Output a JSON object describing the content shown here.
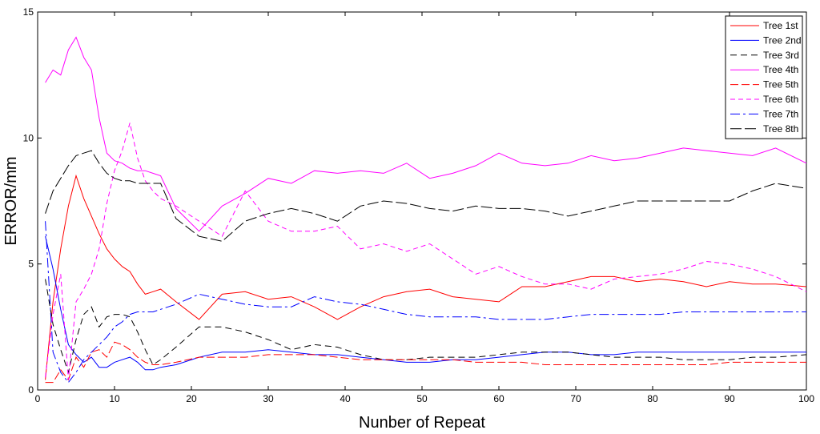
{
  "chart_data": {
    "type": "line",
    "title": "",
    "xlabel": "Nunber of Repeat",
    "ylabel": "ERROR/mm",
    "xlim": [
      0,
      100
    ],
    "ylim": [
      0,
      15
    ],
    "xticks": [
      0,
      10,
      20,
      30,
      40,
      50,
      60,
      70,
      80,
      90,
      100
    ],
    "yticks": [
      0,
      5,
      10,
      15
    ],
    "grid": false,
    "legend": {
      "position": "top-right"
    },
    "series": [
      {
        "name": "Tree 1st",
        "color": "#ff0000",
        "dash": "solid",
        "x": [
          1,
          2,
          3,
          4,
          5,
          6,
          7,
          8,
          9,
          10,
          11,
          12,
          13,
          14,
          15,
          16,
          18,
          21,
          24,
          27,
          30,
          33,
          36,
          39,
          42,
          45,
          48,
          51,
          54,
          57,
          60,
          63,
          66,
          69,
          72,
          75,
          78,
          81,
          84,
          87,
          90,
          93,
          96,
          100
        ],
        "y": [
          0.4,
          3.5,
          5.6,
          7.3,
          8.5,
          7.6,
          6.9,
          6.2,
          5.6,
          5.2,
          4.9,
          4.7,
          4.2,
          3.8,
          3.9,
          4.0,
          3.5,
          2.8,
          3.8,
          3.9,
          3.6,
          3.7,
          3.3,
          2.8,
          3.3,
          3.7,
          3.9,
          4.0,
          3.7,
          3.6,
          3.5,
          4.1,
          4.1,
          4.3,
          4.5,
          4.5,
          4.3,
          4.4,
          4.3,
          4.1,
          4.3,
          4.2,
          4.2,
          4.1
        ]
      },
      {
        "name": "Tree 2nd",
        "color": "#0000ff",
        "dash": "solid",
        "x": [
          1,
          2,
          3,
          4,
          5,
          6,
          7,
          8,
          9,
          10,
          11,
          12,
          13,
          14,
          15,
          16,
          18,
          21,
          24,
          27,
          30,
          33,
          36,
          39,
          42,
          45,
          48,
          51,
          54,
          57,
          60,
          63,
          66,
          69,
          72,
          75,
          78,
          81,
          84,
          87,
          90,
          93,
          96,
          100
        ],
        "y": [
          6.1,
          4.8,
          3.2,
          1.8,
          1.4,
          1.1,
          1.3,
          0.9,
          0.9,
          1.1,
          1.2,
          1.3,
          1.1,
          0.8,
          0.8,
          0.9,
          1.0,
          1.3,
          1.5,
          1.5,
          1.6,
          1.5,
          1.4,
          1.4,
          1.3,
          1.2,
          1.1,
          1.1,
          1.2,
          1.2,
          1.3,
          1.4,
          1.5,
          1.5,
          1.4,
          1.4,
          1.5,
          1.5,
          1.5,
          1.5,
          1.5,
          1.5,
          1.5,
          1.5
        ]
      },
      {
        "name": "Tree 3rd",
        "color": "#000000",
        "dash": "8,5",
        "x": [
          1,
          2,
          3,
          4,
          5,
          6,
          7,
          8,
          9,
          10,
          11,
          12,
          13,
          14,
          15,
          16,
          18,
          21,
          24,
          27,
          30,
          33,
          36,
          39,
          42,
          45,
          48,
          51,
          54,
          57,
          60,
          63,
          66,
          69,
          72,
          75,
          78,
          81,
          84,
          87,
          90,
          93,
          96,
          100
        ],
        "y": [
          4.4,
          2.6,
          1.6,
          0.7,
          2.0,
          3.0,
          3.3,
          2.5,
          2.9,
          3.0,
          3.0,
          2.9,
          2.3,
          1.6,
          1.0,
          1.2,
          1.7,
          2.5,
          2.5,
          2.3,
          2.0,
          1.6,
          1.8,
          1.7,
          1.4,
          1.2,
          1.2,
          1.3,
          1.3,
          1.3,
          1.4,
          1.5,
          1.5,
          1.5,
          1.4,
          1.3,
          1.3,
          1.3,
          1.2,
          1.2,
          1.2,
          1.3,
          1.3,
          1.4
        ]
      },
      {
        "name": "Tree 4th",
        "color": "#ff00ff",
        "dash": "solid",
        "x": [
          1,
          2,
          3,
          4,
          5,
          6,
          7,
          8,
          9,
          10,
          11,
          12,
          13,
          14,
          15,
          16,
          18,
          21,
          24,
          27,
          30,
          33,
          36,
          39,
          42,
          45,
          48,
          51,
          54,
          57,
          60,
          63,
          66,
          69,
          72,
          75,
          78,
          81,
          84,
          87,
          90,
          93,
          96,
          100
        ],
        "y": [
          12.2,
          12.7,
          12.5,
          13.5,
          14.0,
          13.2,
          12.7,
          10.8,
          9.4,
          9.1,
          9.0,
          8.8,
          8.7,
          8.7,
          8.6,
          8.5,
          7.2,
          6.3,
          7.3,
          7.8,
          8.4,
          8.2,
          8.7,
          8.6,
          8.7,
          8.6,
          9.0,
          8.4,
          8.6,
          8.9,
          9.4,
          9.0,
          8.9,
          9.0,
          9.3,
          9.1,
          9.2,
          9.4,
          9.6,
          9.5,
          9.4,
          9.3,
          9.6,
          9.0
        ]
      },
      {
        "name": "Tree 5th",
        "color": "#ff0000",
        "dash": "10,4",
        "x": [
          1,
          2,
          3,
          4,
          5,
          6,
          7,
          8,
          9,
          10,
          11,
          12,
          13,
          14,
          15,
          16,
          18,
          21,
          24,
          27,
          30,
          33,
          36,
          39,
          42,
          45,
          48,
          51,
          54,
          57,
          60,
          63,
          66,
          69,
          72,
          75,
          78,
          81,
          84,
          87,
          90,
          93,
          96,
          100
        ],
        "y": [
          0.3,
          0.3,
          0.8,
          0.4,
          1.3,
          0.9,
          1.5,
          1.6,
          1.3,
          1.9,
          1.8,
          1.6,
          1.3,
          1.1,
          1.0,
          1.0,
          1.1,
          1.3,
          1.3,
          1.3,
          1.4,
          1.4,
          1.4,
          1.3,
          1.2,
          1.2,
          1.2,
          1.2,
          1.2,
          1.1,
          1.1,
          1.1,
          1.0,
          1.0,
          1.0,
          1.0,
          1.0,
          1.0,
          1.0,
          1.0,
          1.1,
          1.1,
          1.1,
          1.1
        ]
      },
      {
        "name": "Tree 6th",
        "color": "#ff00ff",
        "dash": "6,4",
        "x": [
          1,
          2,
          3,
          4,
          5,
          6,
          7,
          8,
          9,
          10,
          11,
          12,
          13,
          14,
          15,
          16,
          18,
          21,
          24,
          27,
          30,
          33,
          36,
          39,
          42,
          45,
          48,
          51,
          54,
          57,
          60,
          63,
          66,
          69,
          72,
          75,
          78,
          81,
          84,
          87,
          90,
          93,
          96,
          100
        ],
        "y": [
          0.5,
          3.0,
          4.6,
          0.4,
          3.5,
          4.0,
          4.6,
          5.6,
          7.4,
          8.7,
          9.5,
          10.6,
          9.2,
          8.3,
          7.9,
          7.6,
          7.3,
          6.7,
          6.1,
          7.9,
          6.7,
          6.3,
          6.3,
          6.5,
          5.6,
          5.8,
          5.5,
          5.8,
          5.2,
          4.6,
          4.9,
          4.5,
          4.2,
          4.2,
          4.0,
          4.4,
          4.5,
          4.6,
          4.8,
          5.1,
          5.0,
          4.8,
          4.5,
          3.9
        ]
      },
      {
        "name": "Tree 7th",
        "color": "#0000ff",
        "dash": "12,4,3,4",
        "x": [
          1,
          2,
          3,
          4,
          5,
          6,
          7,
          8,
          9,
          10,
          11,
          12,
          13,
          14,
          15,
          16,
          18,
          21,
          24,
          27,
          30,
          33,
          36,
          39,
          42,
          45,
          48,
          51,
          54,
          57,
          60,
          63,
          66,
          69,
          72,
          75,
          78,
          81,
          84,
          87,
          90,
          93,
          96,
          100
        ],
        "y": [
          6.7,
          1.5,
          0.7,
          0.3,
          0.7,
          1.2,
          1.5,
          1.8,
          2.1,
          2.5,
          2.7,
          3.0,
          3.1,
          3.1,
          3.1,
          3.2,
          3.4,
          3.8,
          3.6,
          3.4,
          3.3,
          3.3,
          3.7,
          3.5,
          3.4,
          3.2,
          3.0,
          2.9,
          2.9,
          2.9,
          2.8,
          2.8,
          2.8,
          2.9,
          3.0,
          3.0,
          3.0,
          3.0,
          3.1,
          3.1,
          3.1,
          3.1,
          3.1,
          3.1
        ]
      },
      {
        "name": "Tree 8th",
        "color": "#000000",
        "dash": "14,4",
        "x": [
          1,
          2,
          3,
          4,
          5,
          6,
          7,
          8,
          9,
          10,
          11,
          12,
          13,
          14,
          15,
          16,
          18,
          21,
          24,
          27,
          30,
          33,
          36,
          39,
          42,
          45,
          48,
          51,
          54,
          57,
          60,
          63,
          66,
          69,
          72,
          75,
          78,
          81,
          84,
          87,
          90,
          93,
          96,
          100
        ],
        "y": [
          7.0,
          7.9,
          8.4,
          8.9,
          9.3,
          9.4,
          9.5,
          9.0,
          8.6,
          8.4,
          8.3,
          8.3,
          8.2,
          8.2,
          8.2,
          8.2,
          6.8,
          6.1,
          5.9,
          6.7,
          7.0,
          7.2,
          7.0,
          6.7,
          7.3,
          7.5,
          7.4,
          7.2,
          7.1,
          7.3,
          7.2,
          7.2,
          7.1,
          6.9,
          7.1,
          7.3,
          7.5,
          7.5,
          7.5,
          7.5,
          7.5,
          7.9,
          8.2,
          8.0
        ]
      }
    ]
  }
}
